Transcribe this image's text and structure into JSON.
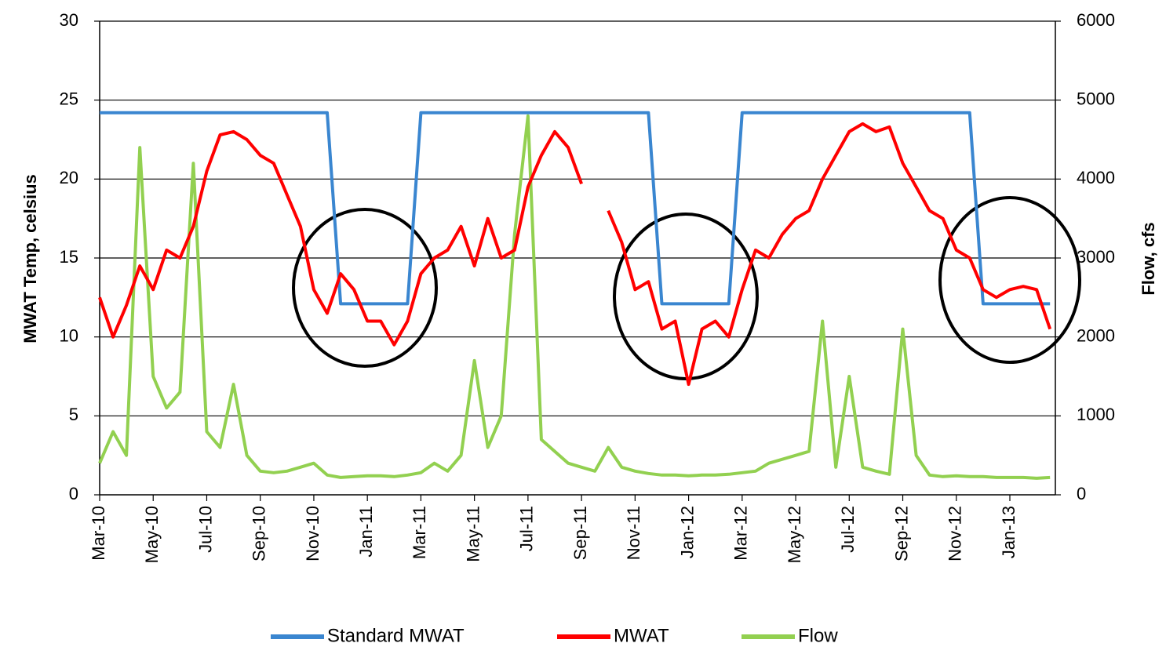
{
  "chart_data": {
    "type": "line",
    "y_label": "MWAT  Temp, celsius",
    "y2_label": "Flow, cfs",
    "categories": [
      "Mar-10",
      null,
      null,
      null,
      "May-10",
      null,
      null,
      null,
      "Jul-10",
      null,
      null,
      null,
      "Sep-10",
      null,
      null,
      null,
      "Nov-10",
      null,
      null,
      null,
      "Jan-11",
      null,
      null,
      null,
      "Mar-11",
      null,
      null,
      null,
      "May-11",
      null,
      null,
      null,
      "Jul-11",
      null,
      null,
      null,
      "Sep-11",
      null,
      null,
      null,
      "Nov-11",
      null,
      null,
      null,
      "Jan-12",
      null,
      null,
      null,
      "Mar-12",
      null,
      null,
      null,
      "May-12",
      null,
      null,
      null,
      "Jul-12",
      null,
      null,
      null,
      "Sep-12",
      null,
      null,
      null,
      "Nov-12",
      null,
      null,
      null,
      "Jan-13",
      null,
      null,
      null
    ],
    "series": [
      {
        "name": "Standard MWAT",
        "color": "#3a86d0",
        "values": [
          24.2,
          24.2,
          24.2,
          24.2,
          24.2,
          24.2,
          24.2,
          24.2,
          24.2,
          24.2,
          24.2,
          24.2,
          24.2,
          24.2,
          24.2,
          24.2,
          24.2,
          24.2,
          12.1,
          12.1,
          12.1,
          12.1,
          12.1,
          12.1,
          24.2,
          24.2,
          24.2,
          24.2,
          24.2,
          24.2,
          24.2,
          24.2,
          24.2,
          24.2,
          24.2,
          24.2,
          24.2,
          24.2,
          24.2,
          24.2,
          24.2,
          24.2,
          12.1,
          12.1,
          12.1,
          12.1,
          12.1,
          12.1,
          24.2,
          24.2,
          24.2,
          24.2,
          24.2,
          24.2,
          24.2,
          24.2,
          24.2,
          24.2,
          24.2,
          24.2,
          24.2,
          24.2,
          24.2,
          24.2,
          24.2,
          24.2,
          12.1,
          12.1,
          12.1,
          12.1,
          12.1,
          12.1
        ]
      },
      {
        "name": "MWAT",
        "color": "#ff0000",
        "values": [
          12.5,
          10,
          12,
          14.5,
          13,
          15.5,
          15,
          17,
          20.5,
          22.8,
          23,
          22.5,
          21.5,
          21,
          19,
          17,
          13,
          11.5,
          14,
          13,
          11,
          11,
          9.5,
          11,
          14,
          15,
          15.5,
          17,
          14.5,
          17.5,
          15,
          15.5,
          19.5,
          21.5,
          23,
          22,
          19.7,
          null,
          18,
          16,
          13,
          13.5,
          10.5,
          11,
          7,
          10.5,
          11,
          10,
          13,
          15.5,
          15,
          16.5,
          17.5,
          18,
          20,
          21.5,
          23,
          23.5,
          23,
          23.3,
          21,
          19.5,
          18,
          17.5,
          15.5,
          15,
          13,
          12.5,
          13,
          13.2,
          13,
          10.5
        ]
      },
      {
        "name": "Flow",
        "color": "#92d050",
        "axis": "y2",
        "values": [
          400,
          800,
          500,
          4400,
          1500,
          1100,
          1300,
          4200,
          800,
          600,
          1400,
          500,
          300,
          280,
          300,
          350,
          400,
          250,
          220,
          230,
          240,
          240,
          230,
          250,
          280,
          400,
          300,
          500,
          1700,
          600,
          1000,
          3300,
          4800,
          700,
          550,
          400,
          350,
          300,
          600,
          350,
          300,
          270,
          250,
          250,
          240,
          250,
          250,
          260,
          280,
          300,
          400,
          450,
          500,
          550,
          2200,
          350,
          1500,
          350,
          300,
          260,
          2100,
          500,
          250,
          230,
          240,
          230,
          230,
          220,
          220,
          220,
          210,
          220
        ]
      }
    ],
    "ylim": [
      0,
      30
    ],
    "yticks": [
      0,
      5,
      10,
      15,
      20,
      25,
      30
    ],
    "y2lim": [
      0,
      6000
    ],
    "y2ticks": [
      0,
      1000,
      2000,
      3000,
      4000,
      5000,
      6000
    ],
    "grid": true
  }
}
